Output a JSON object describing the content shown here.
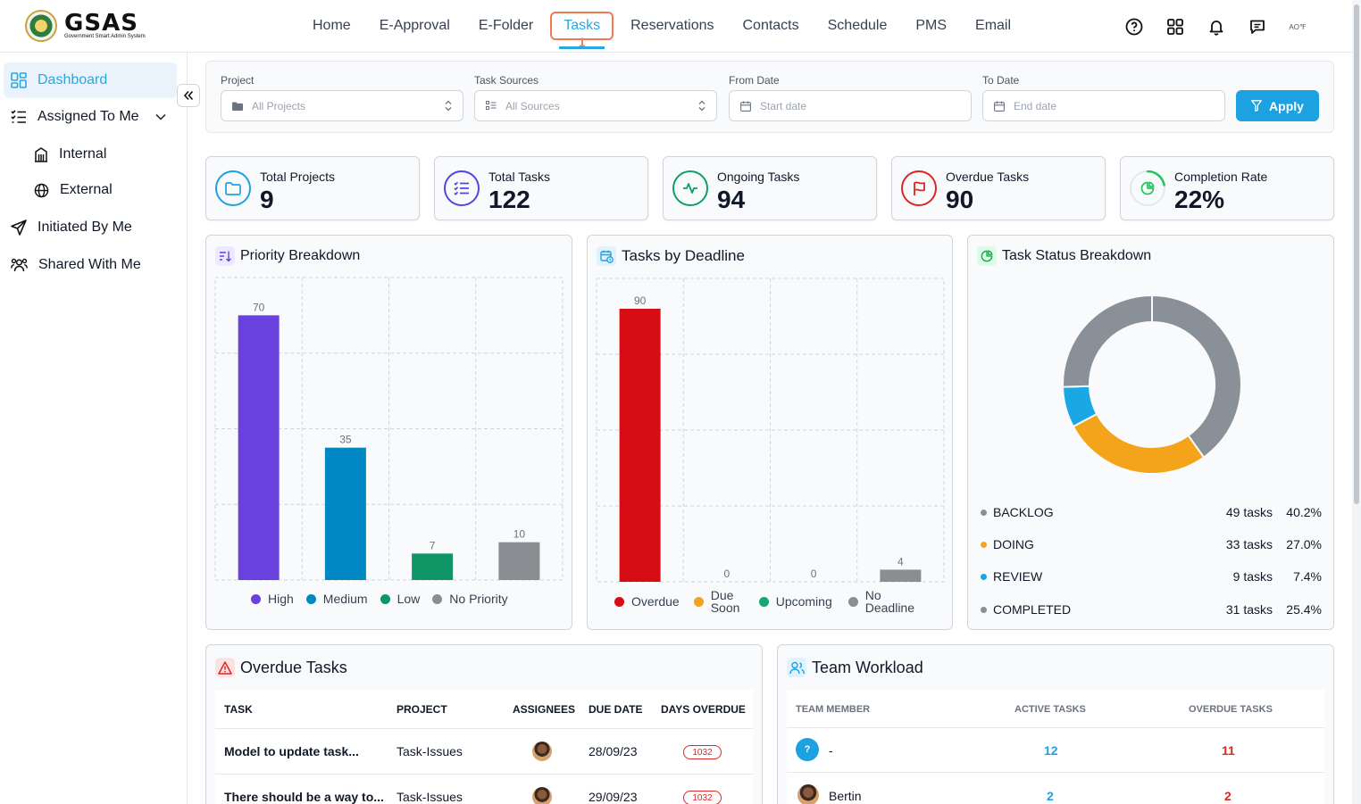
{
  "header": {
    "logo_text": "GSAS",
    "logo_subtitle": "Government Smart Admin System",
    "nav": [
      {
        "label": "Home"
      },
      {
        "label": "E-Approval"
      },
      {
        "label": "E-Folder"
      },
      {
        "label": "Tasks",
        "badge": "1"
      },
      {
        "label": "Reservations"
      },
      {
        "label": "Contacts"
      },
      {
        "label": "Schedule"
      },
      {
        "label": "PMS"
      },
      {
        "label": "Email"
      }
    ],
    "icons": [
      "help-icon",
      "apps-grid-icon",
      "bell-icon",
      "chat-icon"
    ],
    "avatar_text": "AO℉"
  },
  "sidebar": {
    "items": [
      {
        "label": "Dashboard",
        "icon": "dashboard-icon"
      },
      {
        "label": "Assigned To Me",
        "icon": "list-check-icon"
      },
      {
        "label": "Internal",
        "icon": "building-icon"
      },
      {
        "label": "External",
        "icon": "globe-icon"
      },
      {
        "label": "Initiated By Me",
        "icon": "send-icon"
      },
      {
        "label": "Shared With Me",
        "icon": "users-icon"
      }
    ]
  },
  "filters": {
    "project_label": "Project",
    "project_value": "All Projects",
    "sources_label": "Task Sources",
    "sources_value": "All Sources",
    "from_label": "From Date",
    "from_placeholder": "Start date",
    "to_label": "To Date",
    "to_placeholder": "End date",
    "apply_label": "Apply"
  },
  "stats": [
    {
      "label": "Total Projects",
      "value": "9",
      "color": "#1da1e0"
    },
    {
      "label": "Total Tasks",
      "value": "122",
      "color": "#4f46e5"
    },
    {
      "label": "Ongoing Tasks",
      "value": "94",
      "color": "#0f9d6b"
    },
    {
      "label": "Overdue Tasks",
      "value": "90",
      "color": "#dc2626"
    },
    {
      "label": "Completion Rate",
      "value": "22%",
      "color": "#22c55e"
    }
  ],
  "priority": {
    "title": "Priority Breakdown",
    "legend": [
      "High",
      "Medium",
      "Low",
      "No Priority"
    ]
  },
  "deadline": {
    "title": "Tasks by Deadline",
    "legend": [
      "Overdue",
      "Due Soon",
      "Upcoming",
      "No Deadline"
    ]
  },
  "status": {
    "title": "Task Status Breakdown",
    "rows": [
      {
        "label": "BACKLOG",
        "count": "49 tasks",
        "pct": "40.2%",
        "color": "#8a9097"
      },
      {
        "label": "DOING",
        "count": "33 tasks",
        "pct": "27.0%",
        "color": "#f4a41a"
      },
      {
        "label": "REVIEW",
        "count": "9 tasks",
        "pct": "7.4%",
        "color": "#1ba6e4"
      },
      {
        "label": "COMPLETED",
        "count": "31 tasks",
        "pct": "25.4%",
        "color": "#8a9097"
      }
    ]
  },
  "chart_data": [
    {
      "type": "bar",
      "title": "Priority Breakdown",
      "categories": [
        "High",
        "Medium",
        "Low",
        "No Priority"
      ],
      "values": [
        70,
        35,
        7,
        10
      ],
      "colors": [
        "#6941dc",
        "#0088c4",
        "#0f9466",
        "#8a8e93"
      ],
      "ylim": [
        0,
        80
      ],
      "grid": true,
      "legend": "bottom"
    },
    {
      "type": "bar",
      "title": "Tasks by Deadline",
      "categories": [
        "Overdue",
        "Due Soon",
        "Upcoming",
        "No Deadline"
      ],
      "values": [
        90,
        0,
        0,
        4
      ],
      "colors": [
        "#d60d14",
        "#f4a41a",
        "#12a872",
        "#8a8e93"
      ],
      "ylim": [
        0,
        100
      ],
      "grid": true,
      "legend": "bottom"
    },
    {
      "type": "pie",
      "title": "Task Status Breakdown",
      "categories": [
        "BACKLOG",
        "DOING",
        "REVIEW",
        "COMPLETED"
      ],
      "values": [
        49,
        33,
        9,
        31
      ],
      "colors": [
        "#8a9097",
        "#f4a41a",
        "#1ba6e4",
        "#8a9097"
      ]
    }
  ],
  "overdue": {
    "title": "Overdue Tasks",
    "headers": [
      "TASK",
      "PROJECT",
      "ASSIGNEES",
      "DUE DATE",
      "DAYS OVERDUE"
    ],
    "rows": [
      {
        "task": "Model to update task...",
        "project": "Task-Issues",
        "due": "28/09/23",
        "days": "1032"
      },
      {
        "task": "There should be a way to...",
        "project": "Task-Issues",
        "due": "29/09/23",
        "days": "1032"
      }
    ]
  },
  "workload": {
    "title": "Team Workload",
    "headers": [
      "TEAM MEMBER",
      "ACTIVE TASKS",
      "OVERDUE TASKS"
    ],
    "rows": [
      {
        "avatar": "?",
        "name": "-",
        "active": "12",
        "overdue": "11"
      },
      {
        "avatar": "",
        "name": "Bertin",
        "active": "2",
        "overdue": "2"
      }
    ]
  }
}
